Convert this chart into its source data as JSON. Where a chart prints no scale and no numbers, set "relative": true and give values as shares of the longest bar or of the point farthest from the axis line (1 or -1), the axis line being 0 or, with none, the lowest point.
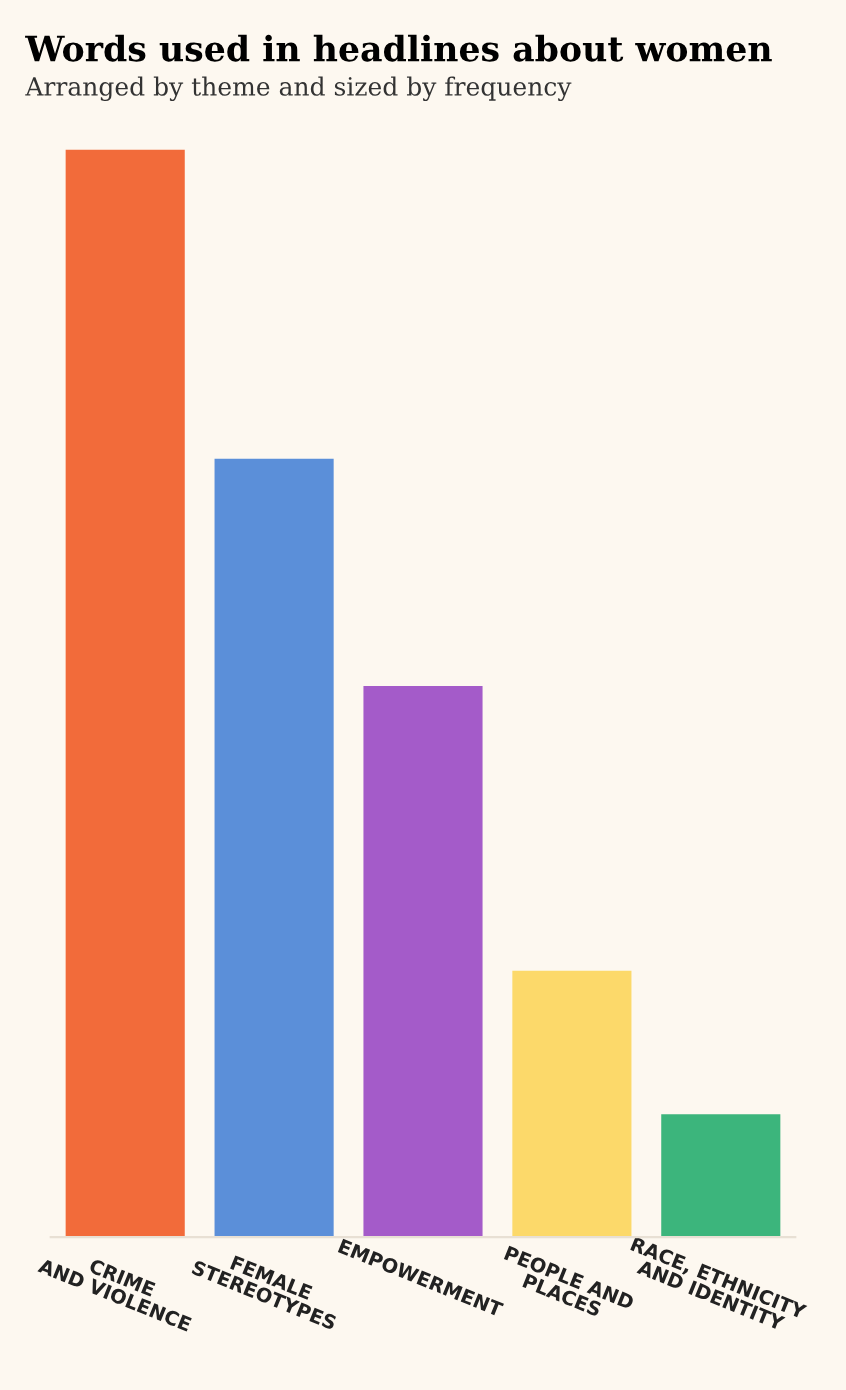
{
  "chart_data": {
    "type": "bar",
    "title": "Words used in headlines about women",
    "subtitle": "Arranged by theme and sized by frequency",
    "categories": [
      "CRIME\nAND VIOLENCE",
      "FEMALE\nSTEREOTYPES",
      "EMPOWERMENT",
      "PEOPLE AND\nPLACES",
      "RACE, ETHNICITY\nAND IDENTITY"
    ],
    "values": [
      1,
      0.716,
      0.507,
      0.245,
      0.113
    ],
    "colors": [
      "#f26b3a",
      "#5b8fd9",
      "#a45bc9",
      "#fcd96a",
      "#3cb57c"
    ],
    "relative": true,
    "grid": false
  }
}
